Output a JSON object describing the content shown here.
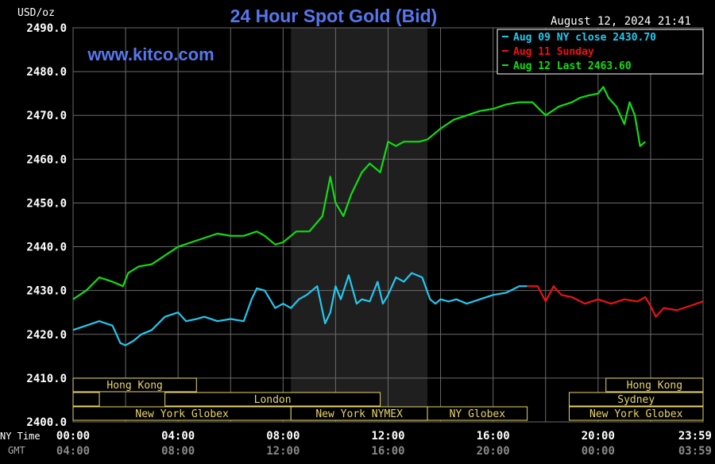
{
  "header": {
    "unit_label": "USD/oz",
    "title": "24 Hour Spot Gold (Bid)",
    "datetime": "August 12, 2024 21:41",
    "watermark": "www.kitco.com"
  },
  "legend": [
    {
      "label": "Aug 09 NY close 2430.70",
      "color": "#22c8f0"
    },
    {
      "label": "Aug 11 Sunday",
      "color": "#ee1111"
    },
    {
      "label": "Aug 12 Last 2463.60",
      "color": "#11dd11"
    }
  ],
  "row_labels": {
    "ny_time": "NY Time",
    "gmt": "GMT"
  },
  "sessions": {
    "row1": [
      {
        "label": "Hong Kong",
        "start": 0,
        "end": 4.7
      },
      {
        "label": "Hong Kong",
        "start": 20.3,
        "end": 24
      }
    ],
    "row2": [
      {
        "label": "",
        "start": 0,
        "end": 1
      },
      {
        "label": "London",
        "start": 3.5,
        "end": 11.7
      },
      {
        "label": "Sydney",
        "start": 18.9,
        "end": 24
      }
    ],
    "row3": [
      {
        "label": "New York Globex",
        "start": 0,
        "end": 8.3
      },
      {
        "label": "New York NYMEX",
        "start": 8.3,
        "end": 13.5
      },
      {
        "label": "NY Globex",
        "start": 13.5,
        "end": 17.3
      },
      {
        "label": "New York Globex",
        "start": 18.9,
        "end": 24
      }
    ]
  },
  "chart_data": {
    "type": "line",
    "title": "24 Hour Spot Gold (Bid)",
    "ylabel": "USD/oz",
    "ylim": [
      2400,
      2490
    ],
    "yticks": [
      "2490.0",
      "2480.0",
      "2470.0",
      "2460.0",
      "2450.0",
      "2440.0",
      "2430.0",
      "2420.0",
      "2410.0",
      "2400.0"
    ],
    "xlim": [
      0,
      24
    ],
    "xticks_ny": [
      "00:00",
      "04:00",
      "08:00",
      "12:00",
      "16:00",
      "20:00",
      "23:59"
    ],
    "xticks_gmt": [
      "04:00",
      "08:00",
      "12:00",
      "16:00",
      "20:00",
      "00:00",
      "03:59"
    ],
    "xtick_hours": [
      0,
      4,
      8,
      12,
      16,
      20,
      24
    ],
    "grid": true,
    "shaded_hours": [
      8.3,
      13.5
    ],
    "series": [
      {
        "name": "Aug 09 NY close 2430.70",
        "color": "#22c8f0",
        "x": [
          0,
          0.5,
          1,
          1.5,
          1.8,
          2,
          2.3,
          2.6,
          3,
          3.5,
          4,
          4.3,
          4.7,
          5,
          5.5,
          6,
          6.5,
          6.8,
          7,
          7.3,
          7.7,
          8,
          8.3,
          8.6,
          8.9,
          9.3,
          9.6,
          9.8,
          10,
          10.2,
          10.5,
          10.8,
          11,
          11.3,
          11.6,
          11.8,
          12,
          12.3,
          12.6,
          12.9,
          13.3,
          13.6,
          13.8,
          14,
          14.3,
          14.6,
          15,
          15.5,
          16,
          16.5,
          17,
          17.3
        ],
        "values": [
          2421,
          2422,
          2423,
          2422,
          2418,
          2417.5,
          2418.5,
          2420,
          2421,
          2424,
          2425,
          2423,
          2423.5,
          2424,
          2423,
          2423.5,
          2423,
          2428,
          2430.5,
          2430,
          2426,
          2427,
          2426,
          2428,
          2429,
          2431,
          2422.5,
          2425,
          2431,
          2428,
          2433.5,
          2427,
          2428,
          2427.5,
          2432,
          2427,
          2429,
          2433,
          2432,
          2434,
          2433,
          2428,
          2427,
          2428,
          2427.5,
          2428,
          2427,
          2428,
          2429,
          2429.5,
          2431,
          2431
        ]
      },
      {
        "name": "Aug 11 Sunday",
        "color": "#ee1111",
        "x": [
          17.3,
          17.7,
          18,
          18.3,
          18.6,
          19,
          19.5,
          20,
          20.5,
          21,
          21.5,
          21.8,
          22,
          22.2,
          22.5,
          23,
          23.5,
          23.99
        ],
        "values": [
          2431,
          2431,
          2427.5,
          2431,
          2429,
          2428.5,
          2427,
          2428,
          2427,
          2428,
          2427.5,
          2428.5,
          2426.5,
          2424,
          2426,
          2425.5,
          2426.5,
          2427.5
        ]
      },
      {
        "name": "Aug 12 Last 2463.60",
        "color": "#11dd11",
        "x": [
          0,
          0.5,
          1,
          1.5,
          1.9,
          2.1,
          2.5,
          3,
          3.5,
          4,
          4.5,
          5,
          5.5,
          6,
          6.5,
          7,
          7.3,
          7.7,
          8,
          8.5,
          9,
          9.5,
          9.8,
          10,
          10.3,
          10.6,
          11,
          11.3,
          11.7,
          12,
          12.3,
          12.6,
          12.9,
          13.2,
          13.5,
          14,
          14.5,
          15,
          15.5,
          16,
          16.5,
          17,
          17.5,
          18,
          18.5,
          19,
          19.3,
          19.6,
          20,
          20.2,
          20.4,
          20.7,
          21,
          21.2,
          21.4,
          21.6,
          21.8
        ],
        "values": [
          2428,
          2430,
          2433,
          2432,
          2431,
          2434,
          2435.5,
          2436,
          2438,
          2440,
          2441,
          2442,
          2443,
          2442.5,
          2442.5,
          2443.5,
          2442.5,
          2440.5,
          2441,
          2443.5,
          2443.5,
          2447,
          2456,
          2450,
          2447,
          2452,
          2457,
          2459,
          2457,
          2464,
          2463,
          2464,
          2464,
          2464,
          2464.5,
          2467,
          2469,
          2470,
          2471,
          2471.5,
          2472.5,
          2473,
          2473,
          2470,
          2472,
          2473,
          2474,
          2474.5,
          2475,
          2476.5,
          2474,
          2472,
          2468,
          2473,
          2470,
          2463,
          2464
        ]
      }
    ]
  }
}
